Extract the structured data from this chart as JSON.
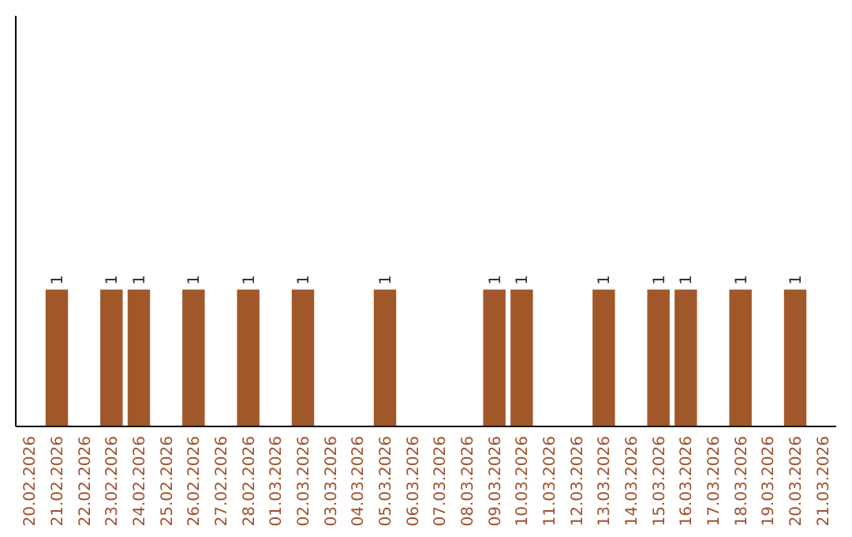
{
  "chart_data": {
    "type": "bar",
    "categories": [
      "20.02.2026",
      "21.02.2026",
      "22.02.2026",
      "23.02.2026",
      "24.02.2026",
      "25.02.2026",
      "26.02.2026",
      "27.02.2026",
      "28.02.2026",
      "01.03.2026",
      "02.03.2026",
      "03.03.2026",
      "04.03.2026",
      "05.03.2026",
      "06.03.2026",
      "07.03.2026",
      "08.03.2026",
      "09.03.2026",
      "10.03.2026",
      "11.03.2026",
      "12.03.2026",
      "13.03.2026",
      "14.03.2026",
      "15.03.2026",
      "16.03.2026",
      "17.03.2026",
      "18.03.2026",
      "19.03.2026",
      "20.03.2026",
      "21.03.2026"
    ],
    "values": [
      0,
      1,
      0,
      1,
      1,
      0,
      1,
      0,
      1,
      0,
      1,
      0,
      0,
      1,
      0,
      0,
      0,
      1,
      1,
      0,
      0,
      1,
      0,
      1,
      1,
      0,
      1,
      0,
      1,
      0
    ],
    "value_labels": [
      null,
      "1",
      null,
      "1",
      "1",
      null,
      "1",
      null,
      "1",
      null,
      "1",
      null,
      null,
      "1",
      null,
      null,
      null,
      "1",
      "1",
      null,
      null,
      "1",
      null,
      "1",
      "1",
      null,
      "1",
      null,
      "1",
      null
    ],
    "color": "#a0582a",
    "ylim": [
      0,
      3
    ],
    "tick_labels": "x"
  }
}
